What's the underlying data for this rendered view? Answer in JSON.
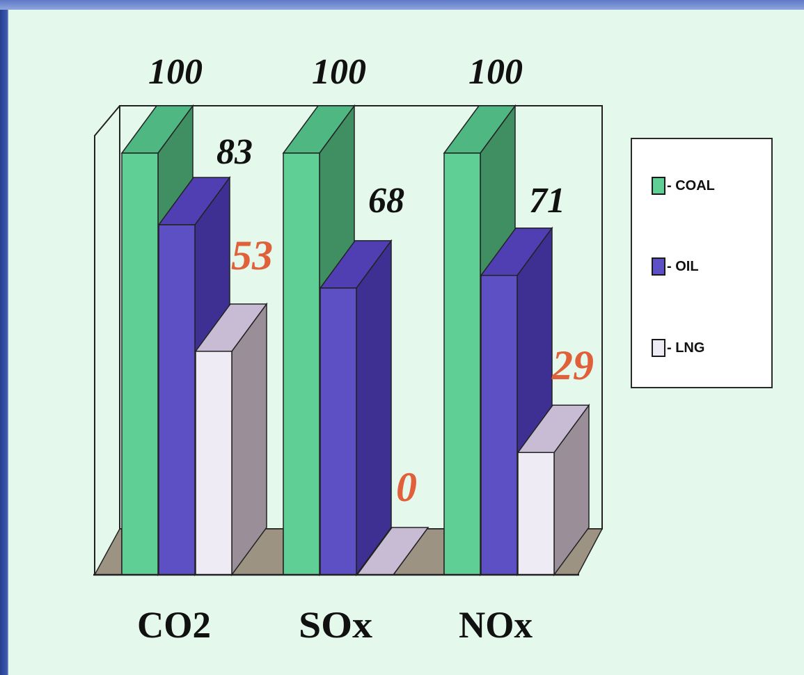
{
  "chart_data": {
    "type": "bar",
    "subtype": "3d-grouped",
    "categories": [
      "CO2",
      "SOx",
      "NOx"
    ],
    "series": [
      {
        "name": "COAL",
        "values": [
          100,
          100,
          100
        ],
        "color": "#5fcf95",
        "side_color": "#3f8f63",
        "top_color": "#4fb882",
        "label_color": "#111111"
      },
      {
        "name": "OIL",
        "values": [
          83,
          68,
          71
        ],
        "color": "#5d4fc4",
        "side_color": "#3e2f92",
        "top_color": "#4f3fb3",
        "label_color": "#111111"
      },
      {
        "name": "LNG",
        "values": [
          53,
          0,
          29
        ],
        "color": "#eeebf5",
        "side_color": "#9a8f98",
        "top_color": "#c8bcd4",
        "label_color": "#e0603a"
      }
    ],
    "value_labels": [
      [
        "100",
        "83",
        "53"
      ],
      [
        "100",
        "68",
        "0"
      ],
      [
        "100",
        "71",
        "29"
      ]
    ],
    "ylim": [
      0,
      100
    ],
    "legend": {
      "position": "right",
      "entries": [
        "- COAL",
        "- OIL",
        "- LNG"
      ]
    },
    "grid": false
  },
  "colors": {
    "floor": "#9d9382",
    "frame": "#222222",
    "background": "#e5f8ec"
  },
  "legend_icons": [
    "square-swatch",
    "square-swatch",
    "square-swatch"
  ]
}
